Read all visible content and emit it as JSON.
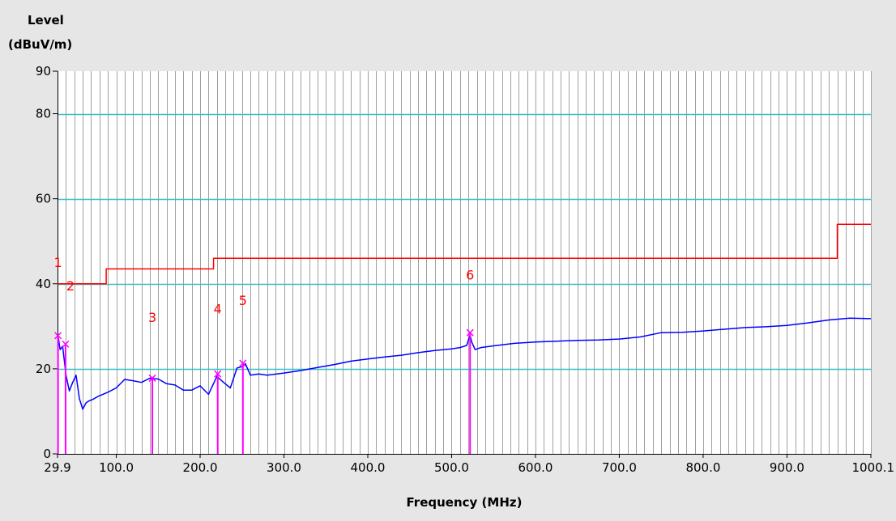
{
  "chart_data": {
    "type": "line",
    "ylabel_line1": "Level",
    "ylabel_line2": "(dBuV/m)",
    "xlabel": "Frequency (MHz)",
    "xlim": [
      29.9,
      1000.1
    ],
    "ylim": [
      0,
      90
    ],
    "grid": true,
    "y_ticks": [
      {
        "value": 0,
        "label": "0"
      },
      {
        "value": 20,
        "label": "20"
      },
      {
        "value": 40,
        "label": "40"
      },
      {
        "value": 60,
        "label": "60"
      },
      {
        "value": 80,
        "label": "80"
      },
      {
        "value": 90,
        "label": "90"
      }
    ],
    "x_ticks": [
      {
        "value": 29.9,
        "label": "29.9"
      },
      {
        "value": 100,
        "label": "100.0"
      },
      {
        "value": 200,
        "label": "200.0"
      },
      {
        "value": 300,
        "label": "300.0"
      },
      {
        "value": 400,
        "label": "400.0"
      },
      {
        "value": 500,
        "label": "500.0"
      },
      {
        "value": 600,
        "label": "600.0"
      },
      {
        "value": 700,
        "label": "700.0"
      },
      {
        "value": 800,
        "label": "800.0"
      },
      {
        "value": 900,
        "label": "900.0"
      },
      {
        "value": 1000.1,
        "label": "1000.1"
      }
    ],
    "series": [
      {
        "color": "#0000ff",
        "x": [
          29.9,
          31,
          33,
          36,
          40,
          44,
          48,
          52,
          56,
          60,
          64,
          68,
          72,
          78,
          84,
          90,
          100,
          110,
          120,
          130,
          140,
          150,
          160,
          170,
          180,
          190,
          200,
          210,
          220,
          228,
          236,
          244,
          250,
          254,
          260,
          270,
          280,
          300,
          320,
          340,
          360,
          380,
          400,
          420,
          440,
          460,
          480,
          500,
          510,
          518,
          522,
          524,
          528,
          535,
          550,
          575,
          600,
          625,
          650,
          675,
          700,
          725,
          750,
          775,
          800,
          825,
          850,
          875,
          900,
          925,
          950,
          975,
          1000.1
        ],
        "y": [
          27.5,
          27.2,
          24.5,
          25.3,
          18.5,
          14.8,
          16.8,
          18.5,
          13.0,
          10.5,
          12.0,
          12.5,
          12.8,
          13.5,
          14.0,
          14.5,
          15.5,
          17.5,
          17.2,
          16.8,
          17.8,
          17.6,
          16.5,
          16.2,
          15.0,
          15.0,
          16.0,
          14.0,
          18.2,
          16.8,
          15.5,
          20.2,
          20.5,
          21.2,
          18.5,
          18.8,
          18.5,
          19.0,
          19.6,
          20.3,
          21.0,
          21.8,
          22.3,
          22.8,
          23.2,
          23.8,
          24.3,
          24.7,
          25.0,
          25.5,
          28.0,
          26.3,
          24.5,
          25.0,
          25.4,
          26.0,
          26.3,
          26.5,
          26.7,
          26.8,
          27.0,
          27.5,
          28.5,
          28.6,
          28.9,
          29.3,
          29.7,
          29.9,
          30.2,
          30.8,
          31.5,
          31.9,
          31.8
        ]
      },
      {
        "color": "#ff0000",
        "x": [
          29.9,
          88,
          88,
          216,
          216,
          960,
          960,
          1000.1
        ],
        "y": [
          40,
          40,
          43.5,
          43.5,
          46,
          46,
          54,
          54
        ]
      }
    ],
    "markers": [
      {
        "label": "1",
        "x": 30.5,
        "y": 27.8
      },
      {
        "label": "2",
        "x": 39.5,
        "y": 25.8
      },
      {
        "label": "3",
        "x": 143,
        "y": 17.8
      },
      {
        "label": "4",
        "x": 221,
        "y": 18.8
      },
      {
        "label": "5",
        "x": 251,
        "y": 21.3
      },
      {
        "label": "6",
        "x": 522,
        "y": 28.5
      }
    ],
    "colors": {
      "background": "#e6e6e6",
      "plot_area": "#ffffff",
      "grid": "#a0a0a0",
      "major_grid": "#35c0c4",
      "marker": "#ff00ff",
      "marker_label": "#ff0000"
    }
  }
}
